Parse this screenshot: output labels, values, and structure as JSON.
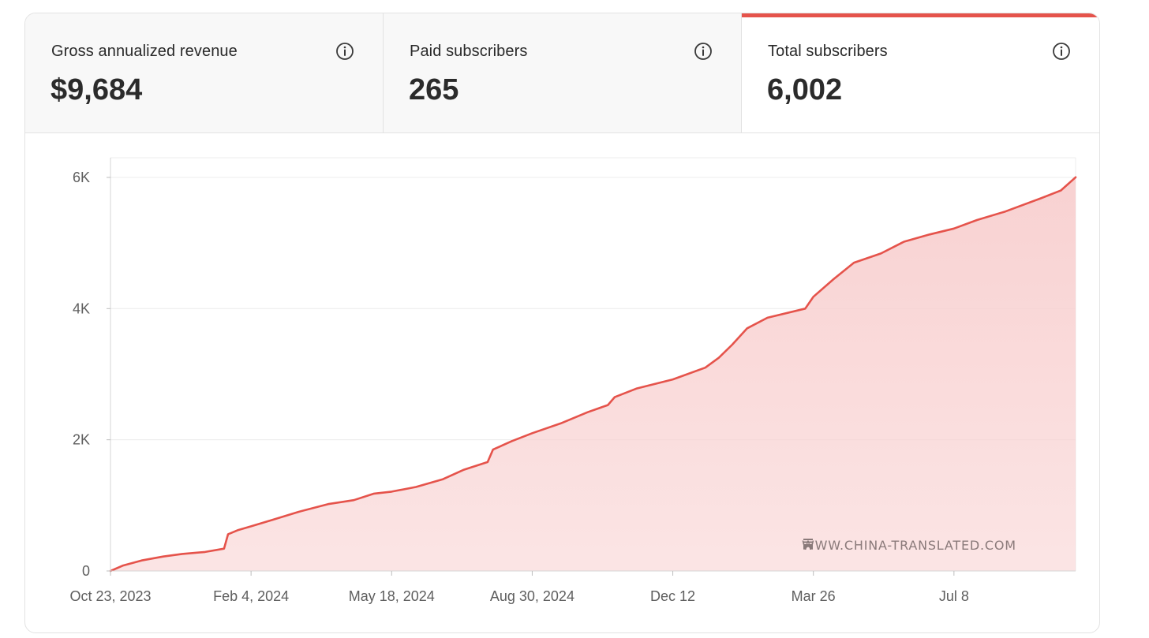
{
  "metrics": [
    {
      "label": "Gross annualized revenue",
      "value": "$9,684",
      "active": false
    },
    {
      "label": "Paid subscribers",
      "value": "265",
      "active": false
    },
    {
      "label": "Total subscribers",
      "value": "6,002",
      "active": true
    }
  ],
  "watermark": "WWW.CHINA-TRANSLATED.COM",
  "colors": {
    "accent": "#e5534b",
    "fill": "#f8cfcf"
  },
  "chart_data": {
    "type": "area",
    "series": [
      {
        "points": [
          [
            "2023-10-23",
            0
          ],
          [
            "2023-11-01",
            80
          ],
          [
            "2023-11-15",
            160
          ],
          [
            "2023-12-01",
            220
          ],
          [
            "2023-12-15",
            260
          ],
          [
            "2024-01-01",
            290
          ],
          [
            "2024-01-15",
            340
          ],
          [
            "2024-01-18",
            560
          ],
          [
            "2024-01-25",
            620
          ],
          [
            "2024-02-04",
            680
          ],
          [
            "2024-02-20",
            780
          ],
          [
            "2024-03-10",
            900
          ],
          [
            "2024-04-01",
            1020
          ],
          [
            "2024-04-20",
            1080
          ],
          [
            "2024-05-05",
            1180
          ],
          [
            "2024-05-18",
            1210
          ],
          [
            "2024-06-05",
            1280
          ],
          [
            "2024-06-25",
            1400
          ],
          [
            "2024-07-10",
            1540
          ],
          [
            "2024-07-28",
            1660
          ],
          [
            "2024-08-01",
            1850
          ],
          [
            "2024-08-15",
            1980
          ],
          [
            "2024-08-30",
            2100
          ],
          [
            "2024-09-20",
            2250
          ],
          [
            "2024-10-10",
            2420
          ],
          [
            "2024-10-25",
            2530
          ],
          [
            "2024-10-30",
            2650
          ],
          [
            "2024-11-15",
            2780
          ],
          [
            "2024-12-12",
            2920
          ],
          [
            "2025-01-05",
            3100
          ],
          [
            "2025-01-15",
            3250
          ],
          [
            "2025-01-25",
            3450
          ],
          [
            "2025-02-05",
            3700
          ],
          [
            "2025-02-20",
            3860
          ],
          [
            "2025-03-20",
            4000
          ],
          [
            "2025-03-26",
            4180
          ],
          [
            "2025-04-10",
            4450
          ],
          [
            "2025-04-25",
            4700
          ],
          [
            "2025-05-15",
            4840
          ],
          [
            "2025-06-01",
            5020
          ],
          [
            "2025-06-20",
            5130
          ],
          [
            "2025-07-08",
            5220
          ],
          [
            "2025-07-25",
            5350
          ],
          [
            "2025-08-15",
            5480
          ],
          [
            "2025-09-10",
            5680
          ],
          [
            "2025-09-25",
            5800
          ],
          [
            "2025-10-06",
            6002
          ]
        ]
      }
    ],
    "x_ticks": [
      {
        "date": "2023-10-23",
        "label": "Oct 23, 2023"
      },
      {
        "date": "2024-02-04",
        "label": "Feb 4, 2024"
      },
      {
        "date": "2024-05-18",
        "label": "May 18, 2024"
      },
      {
        "date": "2024-08-30",
        "label": "Aug 30, 2024"
      },
      {
        "date": "2024-12-12",
        "label": "Dec 12"
      },
      {
        "date": "2025-03-26",
        "label": "Mar 26"
      },
      {
        "date": "2025-07-08",
        "label": "Jul 8"
      }
    ],
    "y_ticks": [
      {
        "value": 0,
        "label": "0"
      },
      {
        "value": 2000,
        "label": "2K"
      },
      {
        "value": 4000,
        "label": "4K"
      },
      {
        "value": 6000,
        "label": "6K"
      }
    ],
    "xlim": [
      "2023-10-23",
      "2025-10-06"
    ],
    "ylim": [
      0,
      6300
    ],
    "grid": true,
    "title": "",
    "xlabel": "",
    "ylabel": ""
  }
}
